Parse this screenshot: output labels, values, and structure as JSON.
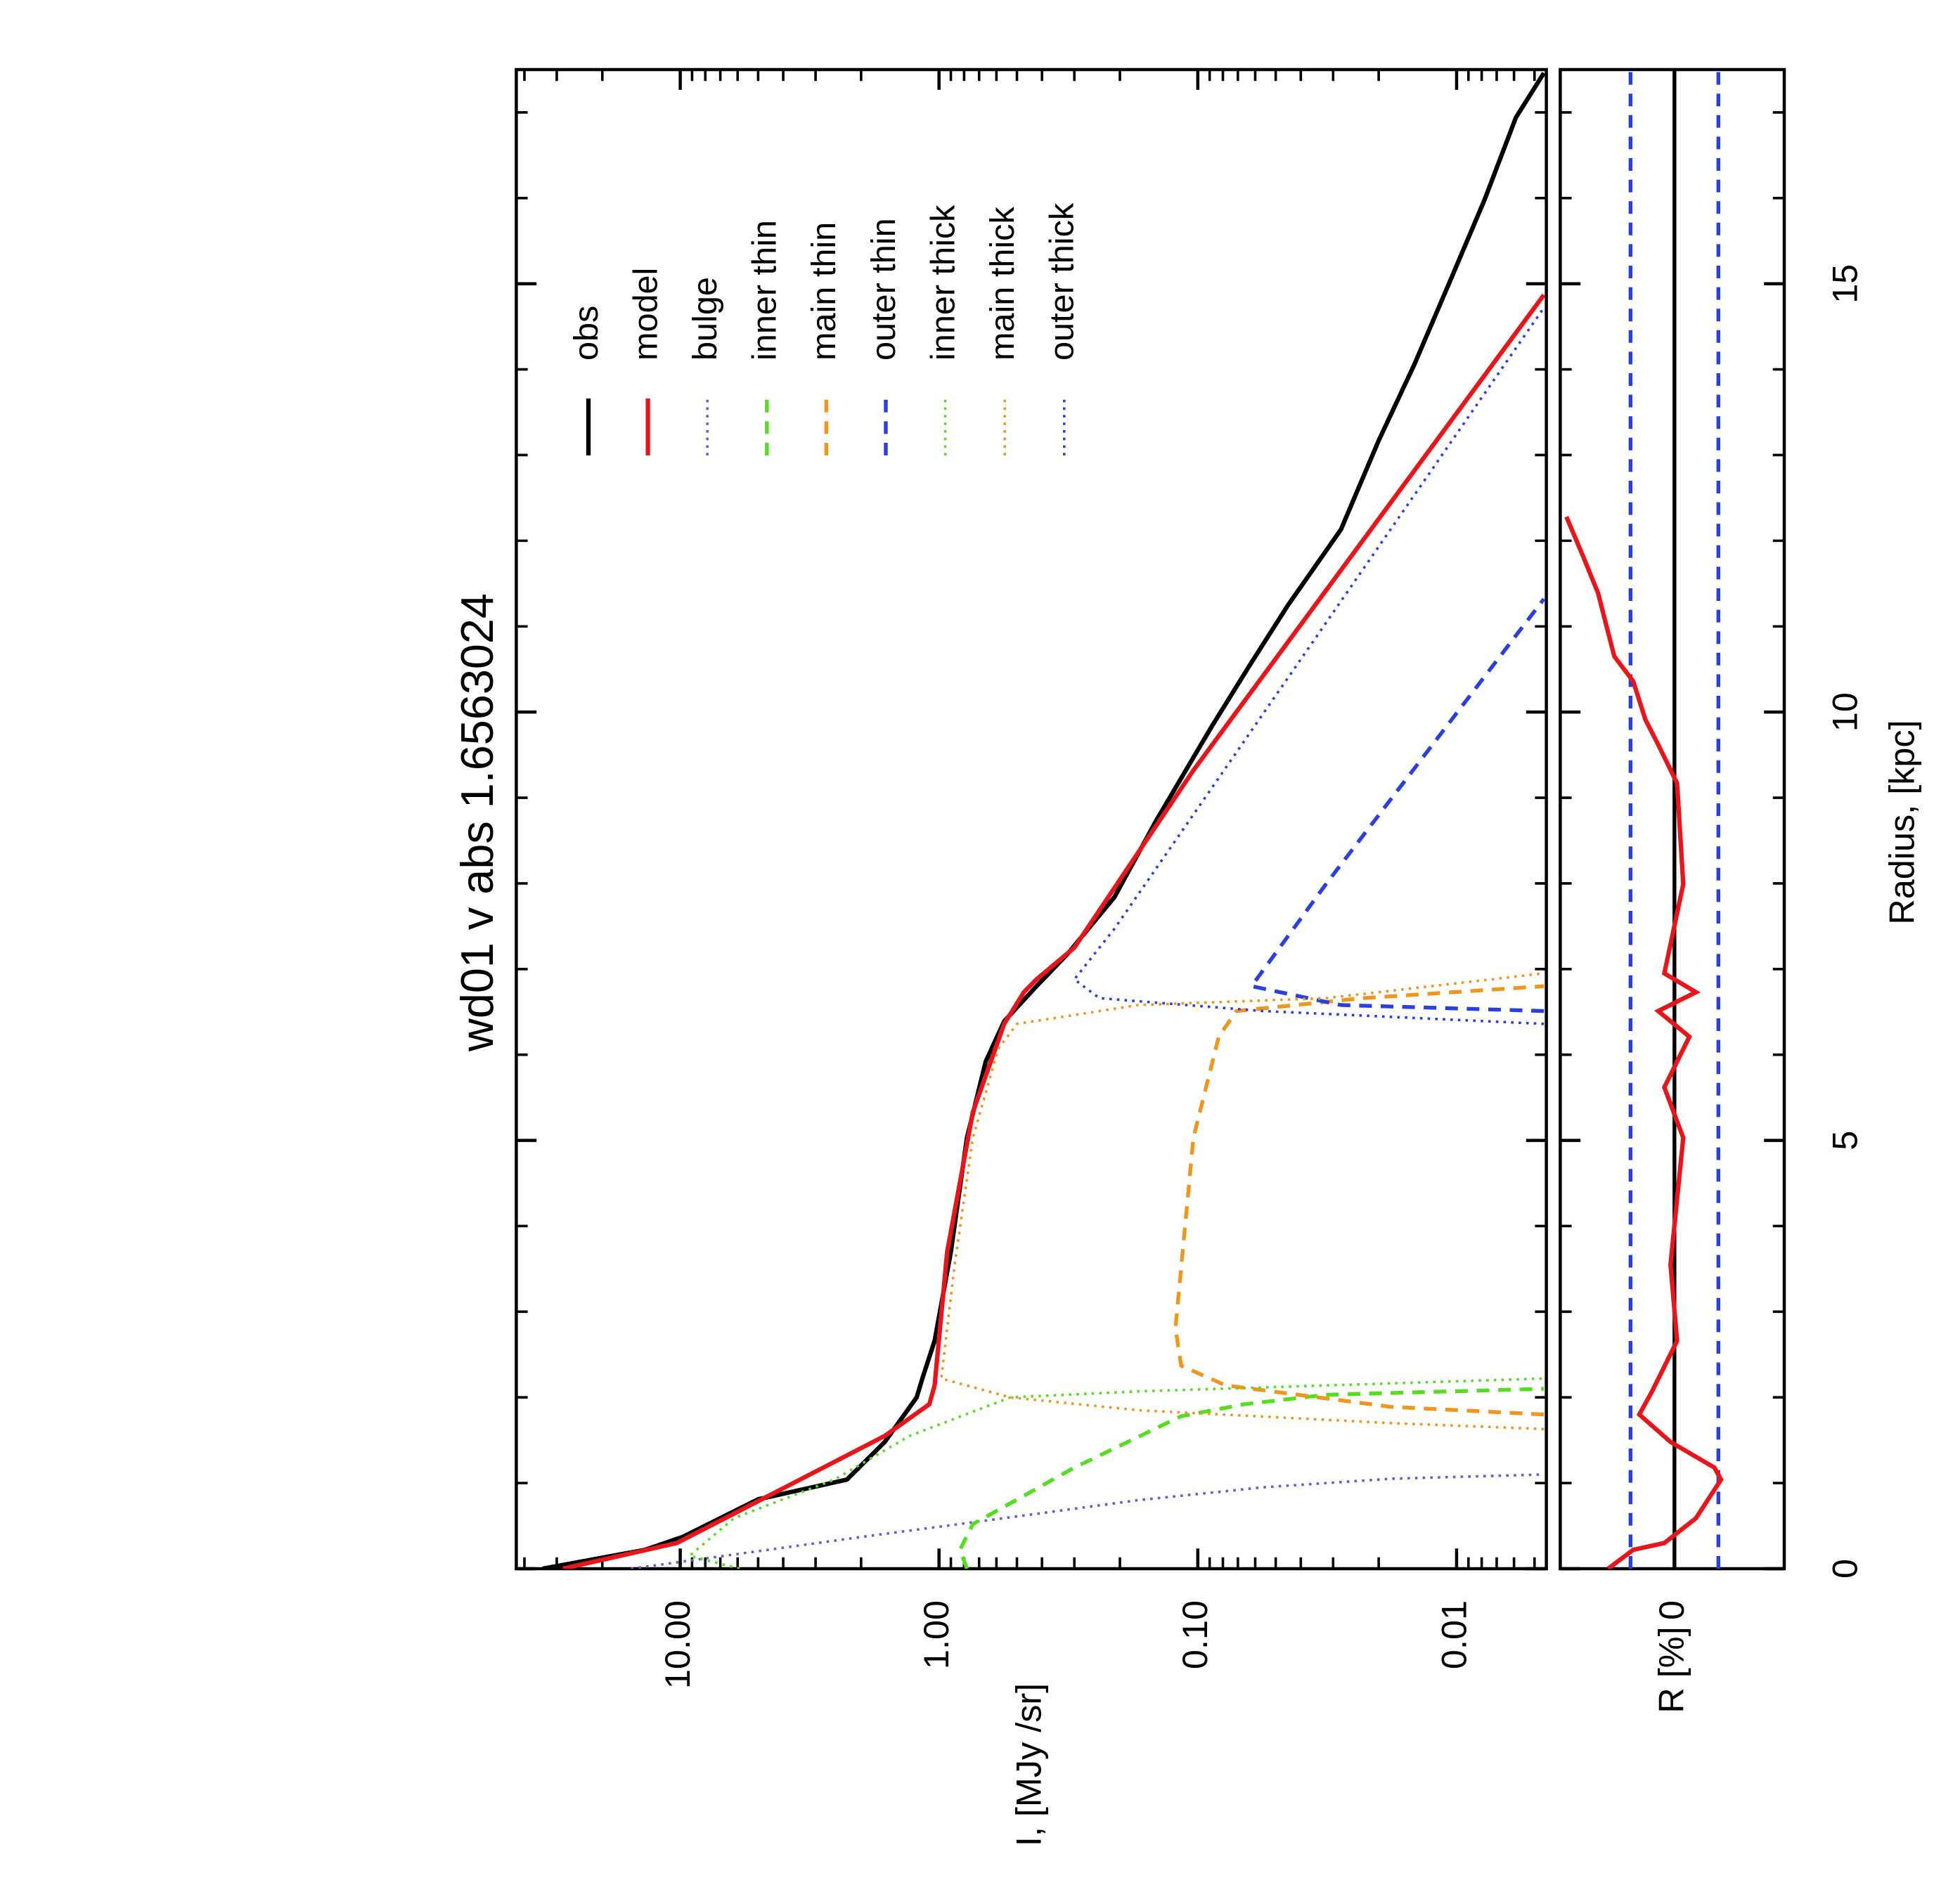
{
  "chart_data": [
    {
      "type": "line",
      "title": "wd01 v abs 1.6563024",
      "y_label": "I, [MJy /sr]",
      "xlim": [
        0,
        17.5
      ],
      "xticks": [
        0,
        5,
        10,
        15
      ],
      "xticks_minor": [
        1,
        2,
        3,
        4,
        6,
        7,
        8,
        9,
        11,
        12,
        13,
        14,
        16,
        17
      ],
      "ylim": [
        0.0045,
        43
      ],
      "log_y": true,
      "yticks": [
        {
          "value": 10,
          "label": "10.00"
        },
        {
          "value": 1,
          "label": "1.00"
        },
        {
          "value": 0.1,
          "label": "0.10"
        },
        {
          "value": 0.01,
          "label": "0.01"
        }
      ],
      "yticks_minor": [
        0.005,
        0.006,
        0.007,
        0.008,
        0.009,
        0.02,
        0.03,
        0.04,
        0.05,
        0.06,
        0.07,
        0.08,
        0.09,
        0.2,
        0.3,
        0.4,
        0.5,
        0.6,
        0.7,
        0.8,
        0.9,
        2,
        3,
        4,
        5,
        6,
        7,
        8,
        9,
        20,
        30,
        40
      ],
      "series": [
        {
          "name": "obs",
          "color": "#000000",
          "dash": "solid",
          "x": [
            0,
            0.22,
            0.37,
            0.81,
            1.04,
            1.48,
            2.0,
            2.22,
            2.66,
            3.7,
            5.03,
            5.92,
            6.39,
            6.8,
            7.17,
            7.84,
            8.73,
            9.47,
            9.84,
            10.58,
            11.24,
            12.13,
            13.17,
            14.05,
            15.09,
            15.98,
            16.94,
            17.46
          ],
          "values": [
            34,
            13.7,
            9.8,
            5.0,
            2.27,
            1.62,
            1.22,
            1.16,
            1.04,
            0.9,
            0.78,
            0.66,
            0.56,
            0.42,
            0.32,
            0.21,
            0.145,
            0.104,
            0.088,
            0.062,
            0.045,
            0.028,
            0.02,
            0.0146,
            0.0104,
            0.0078,
            0.0059,
            0.0046
          ]
        },
        {
          "name": "model",
          "color": "#e8161b",
          "dash": "solid",
          "x": [
            0,
            0.3,
            1.55,
            1.92,
            2.14,
            3.7,
            5.33,
            6.36,
            6.73,
            6.88,
            7.25,
            9.32,
            14.87
          ],
          "values": [
            28.4,
            10.3,
            1.62,
            1.09,
            1.04,
            0.93,
            0.74,
            0.56,
            0.47,
            0.42,
            0.3,
            0.104,
            0.0046
          ]
        },
        {
          "name": "bulge",
          "color": "#6a5acd",
          "dash": "dotted",
          "x": [
            0,
            0.37,
            0.6,
            0.8,
            0.95,
            1.05,
            1.1
          ],
          "values": [
            15.5,
            2.0,
            0.53,
            0.17,
            0.056,
            0.018,
            0.0046
          ]
        },
        {
          "name": "inner thin",
          "color": "#55dd22",
          "dash": "dashed",
          "x": [
            0,
            0.22,
            0.52,
            1.18,
            1.78,
            1.92,
            2.03,
            2.1
          ],
          "values": [
            0.78,
            0.83,
            0.74,
            0.3,
            0.116,
            0.066,
            0.032,
            0.0046
          ]
        },
        {
          "name": "main thin",
          "color": "#f0961e",
          "dash": "dashed",
          "x": [
            1.8,
            1.89,
            2.14,
            2.37,
            2.81,
            5.03,
            6.21,
            6.51,
            6.66,
            6.8
          ],
          "values": [
            0.0046,
            0.018,
            0.078,
            0.116,
            0.122,
            0.104,
            0.083,
            0.071,
            0.023,
            0.0046
          ]
        },
        {
          "name": "outer thin",
          "color": "#2a3fe0",
          "dash": "dashed",
          "x": [
            6.51,
            6.58,
            6.8,
            7.99,
            11.32
          ],
          "values": [
            0.0046,
            0.028,
            0.062,
            0.032,
            0.0046
          ]
        },
        {
          "name": "inner thick",
          "color": "#55dd22",
          "dash": "dotted",
          "x": [
            0,
            0.15,
            0.59,
            1.04,
            1.55,
            2.0,
            2.07,
            2.22
          ],
          "values": [
            5.9,
            9.2,
            6.2,
            2.54,
            1.3,
            0.53,
            0.17,
            0.0046
          ]
        },
        {
          "name": "main thick",
          "color": "#f0961e",
          "dash": "dotted",
          "x": [
            1.63,
            1.7,
            1.85,
            2.0,
            2.22,
            3.55,
            5.03,
            6.07,
            6.36,
            6.58,
            6.66,
            6.95
          ],
          "values": [
            0.0046,
            0.018,
            0.17,
            0.53,
            0.98,
            0.87,
            0.74,
            0.59,
            0.5,
            0.17,
            0.032,
            0.0046
          ]
        },
        {
          "name": "outer thick",
          "color": "#2a3fe0",
          "dash": "dotted",
          "x": [
            6.36,
            6.51,
            6.66,
            6.88,
            7.47,
            14.72
          ],
          "values": [
            0.0046,
            0.056,
            0.24,
            0.3,
            0.21,
            0.0046
          ]
        }
      ]
    },
    {
      "type": "line",
      "x_label": "Radius, [kpc]",
      "y_label": "R [%]",
      "xlim": [
        0,
        17.5
      ],
      "xticks": [
        0,
        5,
        10,
        15
      ],
      "xticks_minor": [
        1,
        2,
        3,
        4,
        6,
        7,
        8,
        9,
        11,
        12,
        13,
        14,
        16,
        17
      ],
      "ylim": [
        -2.5,
        2.6
      ],
      "yticks": [
        0
      ],
      "ref_lines": [
        {
          "value": 0,
          "color": "#000000",
          "dash": "solid"
        },
        {
          "value": 1,
          "color": "#2a3fe0",
          "dash": "dashed"
        },
        {
          "value": -1,
          "color": "#2a3fe0",
          "dash": "dashed"
        }
      ],
      "color": "#e8161b",
      "x": [
        0,
        0.22,
        0.3,
        0.59,
        1.04,
        1.18,
        1.48,
        1.8,
        2.07,
        2.66,
        3.55,
        5.03,
        5.62,
        6.21,
        6.51,
        6.73,
        6.95,
        7.99,
        9.17,
        9.62,
        9.91,
        10.36,
        10.65,
        11.39,
        11.83,
        12.28
      ],
      "values": [
        1.51,
        0.94,
        0.23,
        -0.49,
        -1.06,
        -0.91,
        0.09,
        0.8,
        0.51,
        -0.06,
        0.09,
        -0.2,
        0.23,
        -0.34,
        0.37,
        -0.49,
        0.23,
        -0.2,
        -0.06,
        0.37,
        0.66,
        0.94,
        1.37,
        1.74,
        2.09,
        2.46
      ]
    }
  ]
}
